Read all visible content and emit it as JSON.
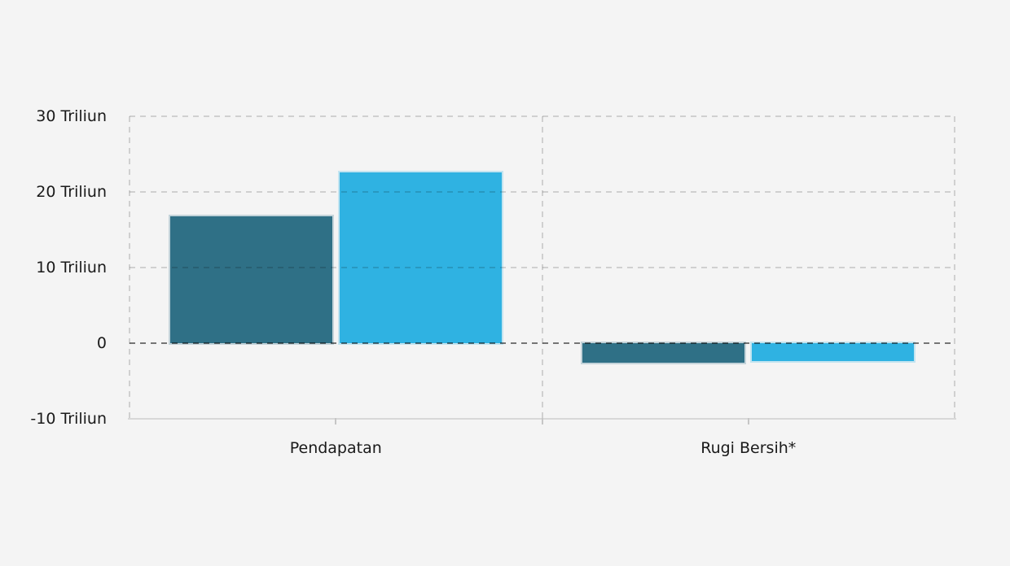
{
  "chart_data": {
    "type": "bar",
    "title": "",
    "categories": [
      "Pendapatan",
      "Rugi Bersih*"
    ],
    "series": [
      {
        "id": "series-1",
        "color": "#2f7086",
        "values": [
          16.8,
          -2.6
        ]
      },
      {
        "id": "series-2",
        "color": "#2fb2e2",
        "values": [
          22.6,
          -2.4
        ]
      }
    ],
    "value_unit": "Triliun",
    "ylim": [
      -10,
      30
    ],
    "yticks": [
      {
        "value": 30,
        "label": "30 Triliun"
      },
      {
        "value": 20,
        "label": "20 Triliun"
      },
      {
        "value": 10,
        "label": "10 Triliun"
      },
      {
        "value": 0,
        "label": "0"
      },
      {
        "value": -10,
        "label": "-10 Triliun"
      }
    ],
    "legend": "none",
    "grid": {
      "horizontal": "dashed",
      "zero_line": "dashed-dark",
      "vertical_group_separators": "dashed",
      "bottom_axis": "solid"
    }
  },
  "colors": {
    "background": "#f4f4f4",
    "text": "#1a1a1a",
    "gridline": "rgba(0,0,0,0.15)",
    "zero_line": "rgba(0,0,0,0.52)",
    "axis_line": "#d8d8d8",
    "series_1": "#2f7086",
    "series_2": "#2fb2e2"
  }
}
